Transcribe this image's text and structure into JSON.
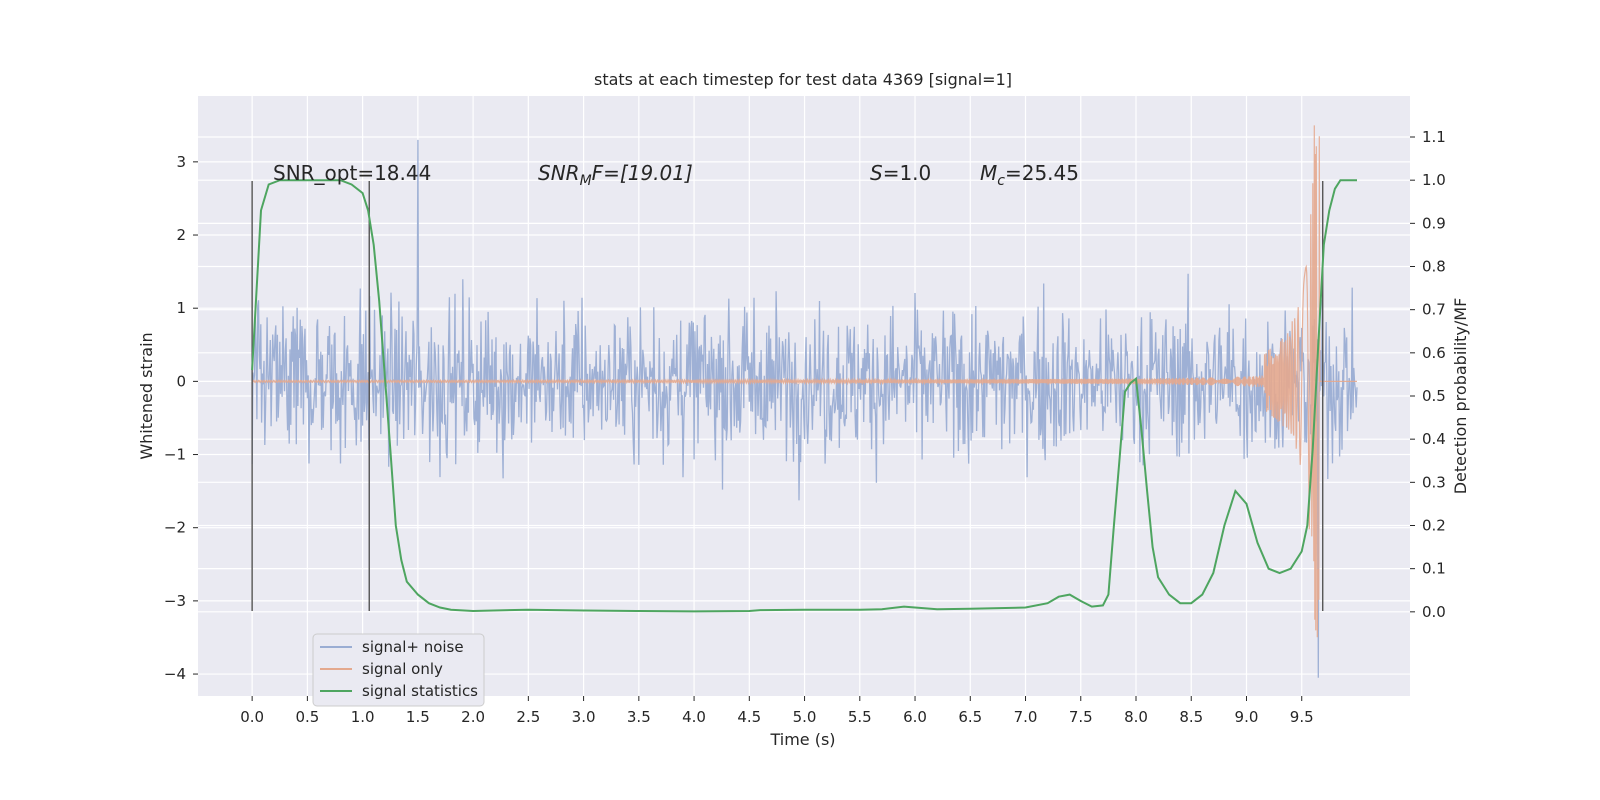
{
  "chart_data": {
    "type": "line",
    "title": "stats at each timestep for test data 4369 [signal=1]",
    "xlabel": "Time (s)",
    "ylabel": "Whitened strain",
    "y2label": "Detection probability/MF",
    "xlim": [
      -0.49,
      10.48
    ],
    "ylim": [
      -4.3,
      3.9
    ],
    "y2lim": [
      -0.195,
      1.195
    ],
    "x_ticks": [
      "0.0",
      "0.5",
      "1.0",
      "1.5",
      "2.0",
      "2.5",
      "3.0",
      "3.5",
      "4.0",
      "4.5",
      "5.0",
      "5.5",
      "6.0",
      "6.5",
      "7.0",
      "7.5",
      "8.0",
      "8.5",
      "9.0",
      "9.5"
    ],
    "y_ticks": [
      3,
      2,
      1,
      0,
      -1,
      -2,
      -3,
      -4
    ],
    "y2_ticks": [
      "1.1",
      "1.0",
      "0.9",
      "0.8",
      "0.7",
      "0.6",
      "0.5",
      "0.4",
      "0.3",
      "0.2",
      "0.1",
      "0.0"
    ],
    "grid": true,
    "legend_position": "lower-left",
    "annotations": {
      "snr_opt": "SNR_opt=18.44",
      "snr_mf_base": "SNR",
      "snr_mf_sub": "M",
      "snr_mf_rest": "F=[19.01]",
      "s_base": "S",
      "s_rest": "=1.0",
      "mc_base": "M",
      "mc_sub": "c",
      "mc_rest": "=25.45"
    },
    "vertical_lines_x": [
      0.0,
      1.06,
      9.69
    ],
    "series": [
      {
        "name": "signal+ noise",
        "color": "#9aadd3",
        "description_kind": "whitened noise trace, 10 s",
        "envelope_typical": [
          -1.6,
          1.6
        ],
        "extremes": {
          "max": 3.3,
          "max_x": 1.5,
          "min": -4.05,
          "min_x": 9.65
        }
      },
      {
        "name": "signal only",
        "color": "#e4a98e",
        "kind": "chirp",
        "merger_time": 9.66,
        "peak_amplitude": 3.5
      },
      {
        "name": "signal statistics",
        "color": "#4ea560",
        "axis": "right",
        "x": [
          0.0,
          0.08,
          0.15,
          0.25,
          0.4,
          0.6,
          0.8,
          0.9,
          1.0,
          1.05,
          1.1,
          1.15,
          1.2,
          1.25,
          1.3,
          1.35,
          1.4,
          1.5,
          1.6,
          1.7,
          1.8,
          2.0,
          2.5,
          3.0,
          3.5,
          4.0,
          4.5,
          4.6,
          5.0,
          5.5,
          5.7,
          5.9,
          6.0,
          6.2,
          6.5,
          7.0,
          7.2,
          7.3,
          7.4,
          7.5,
          7.6,
          7.7,
          7.75,
          7.8,
          7.85,
          7.9,
          7.95,
          8.0,
          8.05,
          8.1,
          8.15,
          8.2,
          8.3,
          8.4,
          8.5,
          8.6,
          8.7,
          8.8,
          8.9,
          9.0,
          9.1,
          9.2,
          9.3,
          9.4,
          9.5,
          9.55,
          9.6,
          9.65,
          9.7,
          9.75,
          9.8,
          9.85,
          9.9,
          9.95,
          10.0
        ],
        "y": [
          0.56,
          0.93,
          0.99,
          1.0,
          1.0,
          1.0,
          1.0,
          0.99,
          0.97,
          0.93,
          0.85,
          0.72,
          0.55,
          0.38,
          0.2,
          0.12,
          0.07,
          0.04,
          0.02,
          0.01,
          0.005,
          0.002,
          0.005,
          0.003,
          0.002,
          0.001,
          0.002,
          0.004,
          0.005,
          0.005,
          0.006,
          0.012,
          0.01,
          0.006,
          0.007,
          0.01,
          0.02,
          0.035,
          0.04,
          0.025,
          0.012,
          0.015,
          0.04,
          0.2,
          0.35,
          0.51,
          0.53,
          0.54,
          0.42,
          0.28,
          0.15,
          0.08,
          0.04,
          0.02,
          0.02,
          0.04,
          0.09,
          0.2,
          0.28,
          0.25,
          0.16,
          0.1,
          0.09,
          0.1,
          0.14,
          0.2,
          0.38,
          0.62,
          0.85,
          0.93,
          0.98,
          1.0,
          1.0,
          1.0,
          1.0
        ]
      }
    ]
  }
}
